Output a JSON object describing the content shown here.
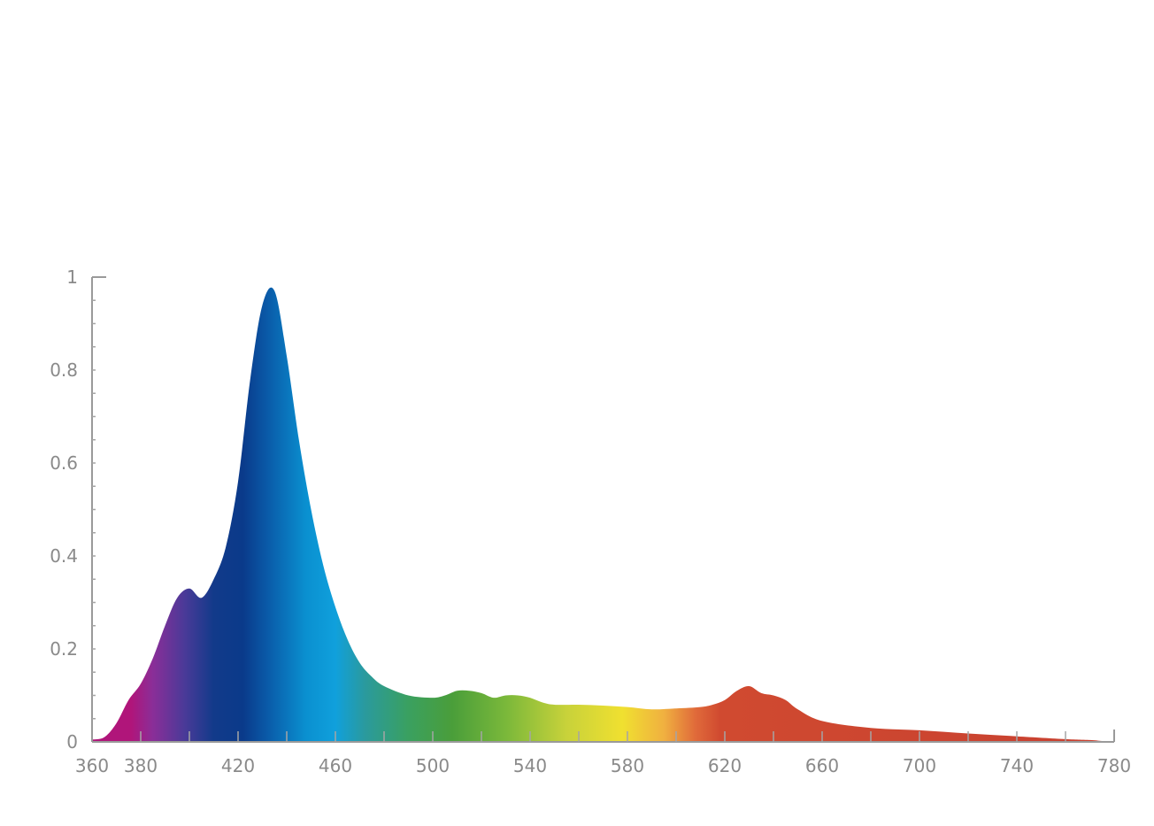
{
  "chart_data": {
    "type": "area",
    "title": "",
    "xlabel": "",
    "ylabel": "",
    "xlim": [
      360,
      780
    ],
    "ylim": [
      0,
      1
    ],
    "x_ticks": [
      360,
      380,
      420,
      460,
      500,
      540,
      580,
      620,
      660,
      700,
      740,
      780
    ],
    "x_tick_labels": [
      "360",
      "380",
      "420",
      "460",
      "500",
      "540",
      "580",
      "620",
      "660",
      "700",
      "740",
      "780"
    ],
    "y_ticks": [
      0,
      0.2,
      0.4,
      0.6,
      0.8,
      1
    ],
    "y_tick_labels": [
      "0",
      "0.2",
      "0.4",
      "0.6",
      "0.8",
      "1"
    ],
    "grid": false,
    "fill": "visible spectrum gradient",
    "series": [
      {
        "x": [
          360,
          365,
          370,
          375,
          380,
          385,
          390,
          395,
          400,
          405,
          410,
          415,
          420,
          425,
          430,
          435,
          440,
          445,
          450,
          455,
          460,
          465,
          470,
          475,
          480,
          490,
          500,
          505,
          510,
          515,
          520,
          525,
          530,
          535,
          540,
          545,
          550,
          560,
          570,
          580,
          590,
          600,
          610,
          615,
          620,
          625,
          630,
          635,
          640,
          645,
          650,
          660,
          680,
          700,
          720,
          740,
          760,
          770,
          775,
          780
        ],
        "y": [
          0.005,
          0.01,
          0.04,
          0.09,
          0.125,
          0.18,
          0.25,
          0.31,
          0.33,
          0.31,
          0.35,
          0.42,
          0.56,
          0.78,
          0.94,
          0.97,
          0.83,
          0.65,
          0.5,
          0.38,
          0.29,
          0.22,
          0.17,
          0.14,
          0.12,
          0.1,
          0.095,
          0.1,
          0.11,
          0.11,
          0.105,
          0.095,
          0.1,
          0.1,
          0.095,
          0.085,
          0.08,
          0.08,
          0.078,
          0.075,
          0.07,
          0.072,
          0.075,
          0.08,
          0.09,
          0.11,
          0.12,
          0.105,
          0.1,
          0.09,
          0.07,
          0.045,
          0.03,
          0.025,
          0.018,
          0.012,
          0.006,
          0.004,
          0.002,
          0.001
        ]
      }
    ],
    "colors": {
      "axis": "#9a9a9a",
      "tick_label": "#8a8a8a",
      "gradient_stops": [
        {
          "x": 360,
          "color": "#b0157a"
        },
        {
          "x": 376,
          "color": "#b0157a"
        },
        {
          "x": 385,
          "color": "#8a2e98"
        },
        {
          "x": 398,
          "color": "#4a3a98"
        },
        {
          "x": 410,
          "color": "#123a8a"
        },
        {
          "x": 422,
          "color": "#0a3a8a"
        },
        {
          "x": 432,
          "color": "#0a5aa8"
        },
        {
          "x": 448,
          "color": "#0a90d0"
        },
        {
          "x": 460,
          "color": "#10a0dc"
        },
        {
          "x": 472,
          "color": "#2a9a9e"
        },
        {
          "x": 490,
          "color": "#3aa060"
        },
        {
          "x": 508,
          "color": "#4a9e3a"
        },
        {
          "x": 530,
          "color": "#7ab83a"
        },
        {
          "x": 555,
          "color": "#c8d23a"
        },
        {
          "x": 578,
          "color": "#f0e030"
        },
        {
          "x": 595,
          "color": "#f0b040"
        },
        {
          "x": 608,
          "color": "#e06a3a"
        },
        {
          "x": 618,
          "color": "#d04a30"
        },
        {
          "x": 780,
          "color": "#c84030"
        }
      ]
    }
  }
}
